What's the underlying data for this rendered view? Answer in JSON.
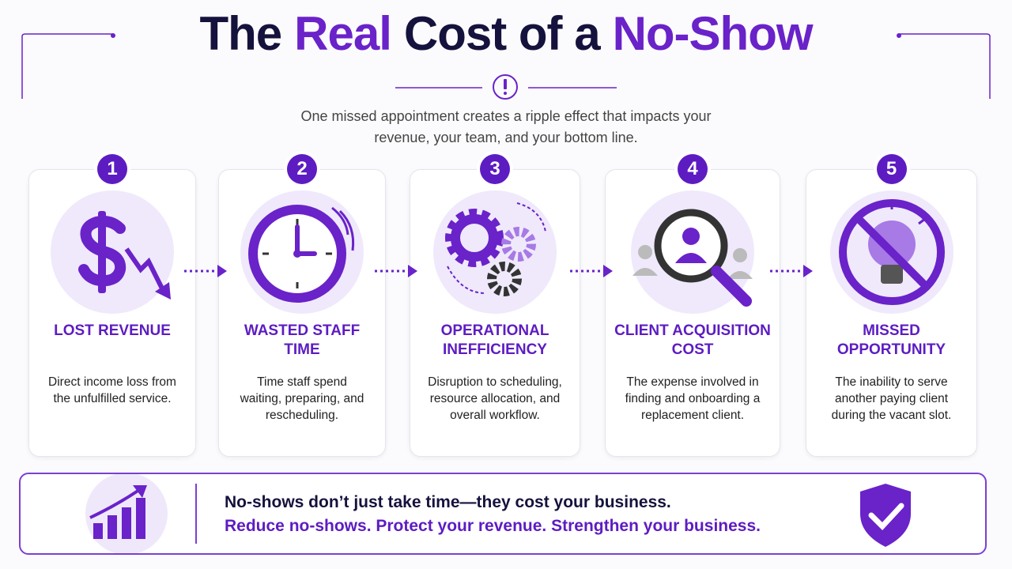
{
  "header": {
    "title_parts": [
      {
        "text": "The",
        "color": "#15123d"
      },
      {
        "text": "Real",
        "color": "#6a22c9"
      },
      {
        "text": "Cost of a",
        "color": "#15123d"
      },
      {
        "text": "No-Show",
        "color": "#6a22c9"
      }
    ],
    "subtitle": "One missed appointment creates a ripple effect that impacts your revenue, your team, and your bottom line."
  },
  "steps": [
    {
      "number": 1,
      "title": "LOST REVENUE",
      "description": "Direct income loss from the unfulfilled service."
    },
    {
      "number": 2,
      "title": "WASTED STAFF TIME",
      "description": "Time staff spend waiting, preparing, and rescheduling."
    },
    {
      "number": 3,
      "title": "OPERATIONAL INEFFICIENCY",
      "description": "Disruption to scheduling, resource allocation, and overall workflow."
    },
    {
      "number": 4,
      "title": "CLIENT ACQUISITION COST",
      "description": "The expense involved in finding and onboarding a replacement client."
    },
    {
      "number": 5,
      "title": "MISSED OPPORTUNITY",
      "description": "The inability to serve another paying client during the vacant slot."
    }
  ],
  "footer": {
    "line1": "No-shows don’t just take time—they cost your business.",
    "line2": "Reduce no-shows. Protect your revenue. Strengthen your business."
  }
}
